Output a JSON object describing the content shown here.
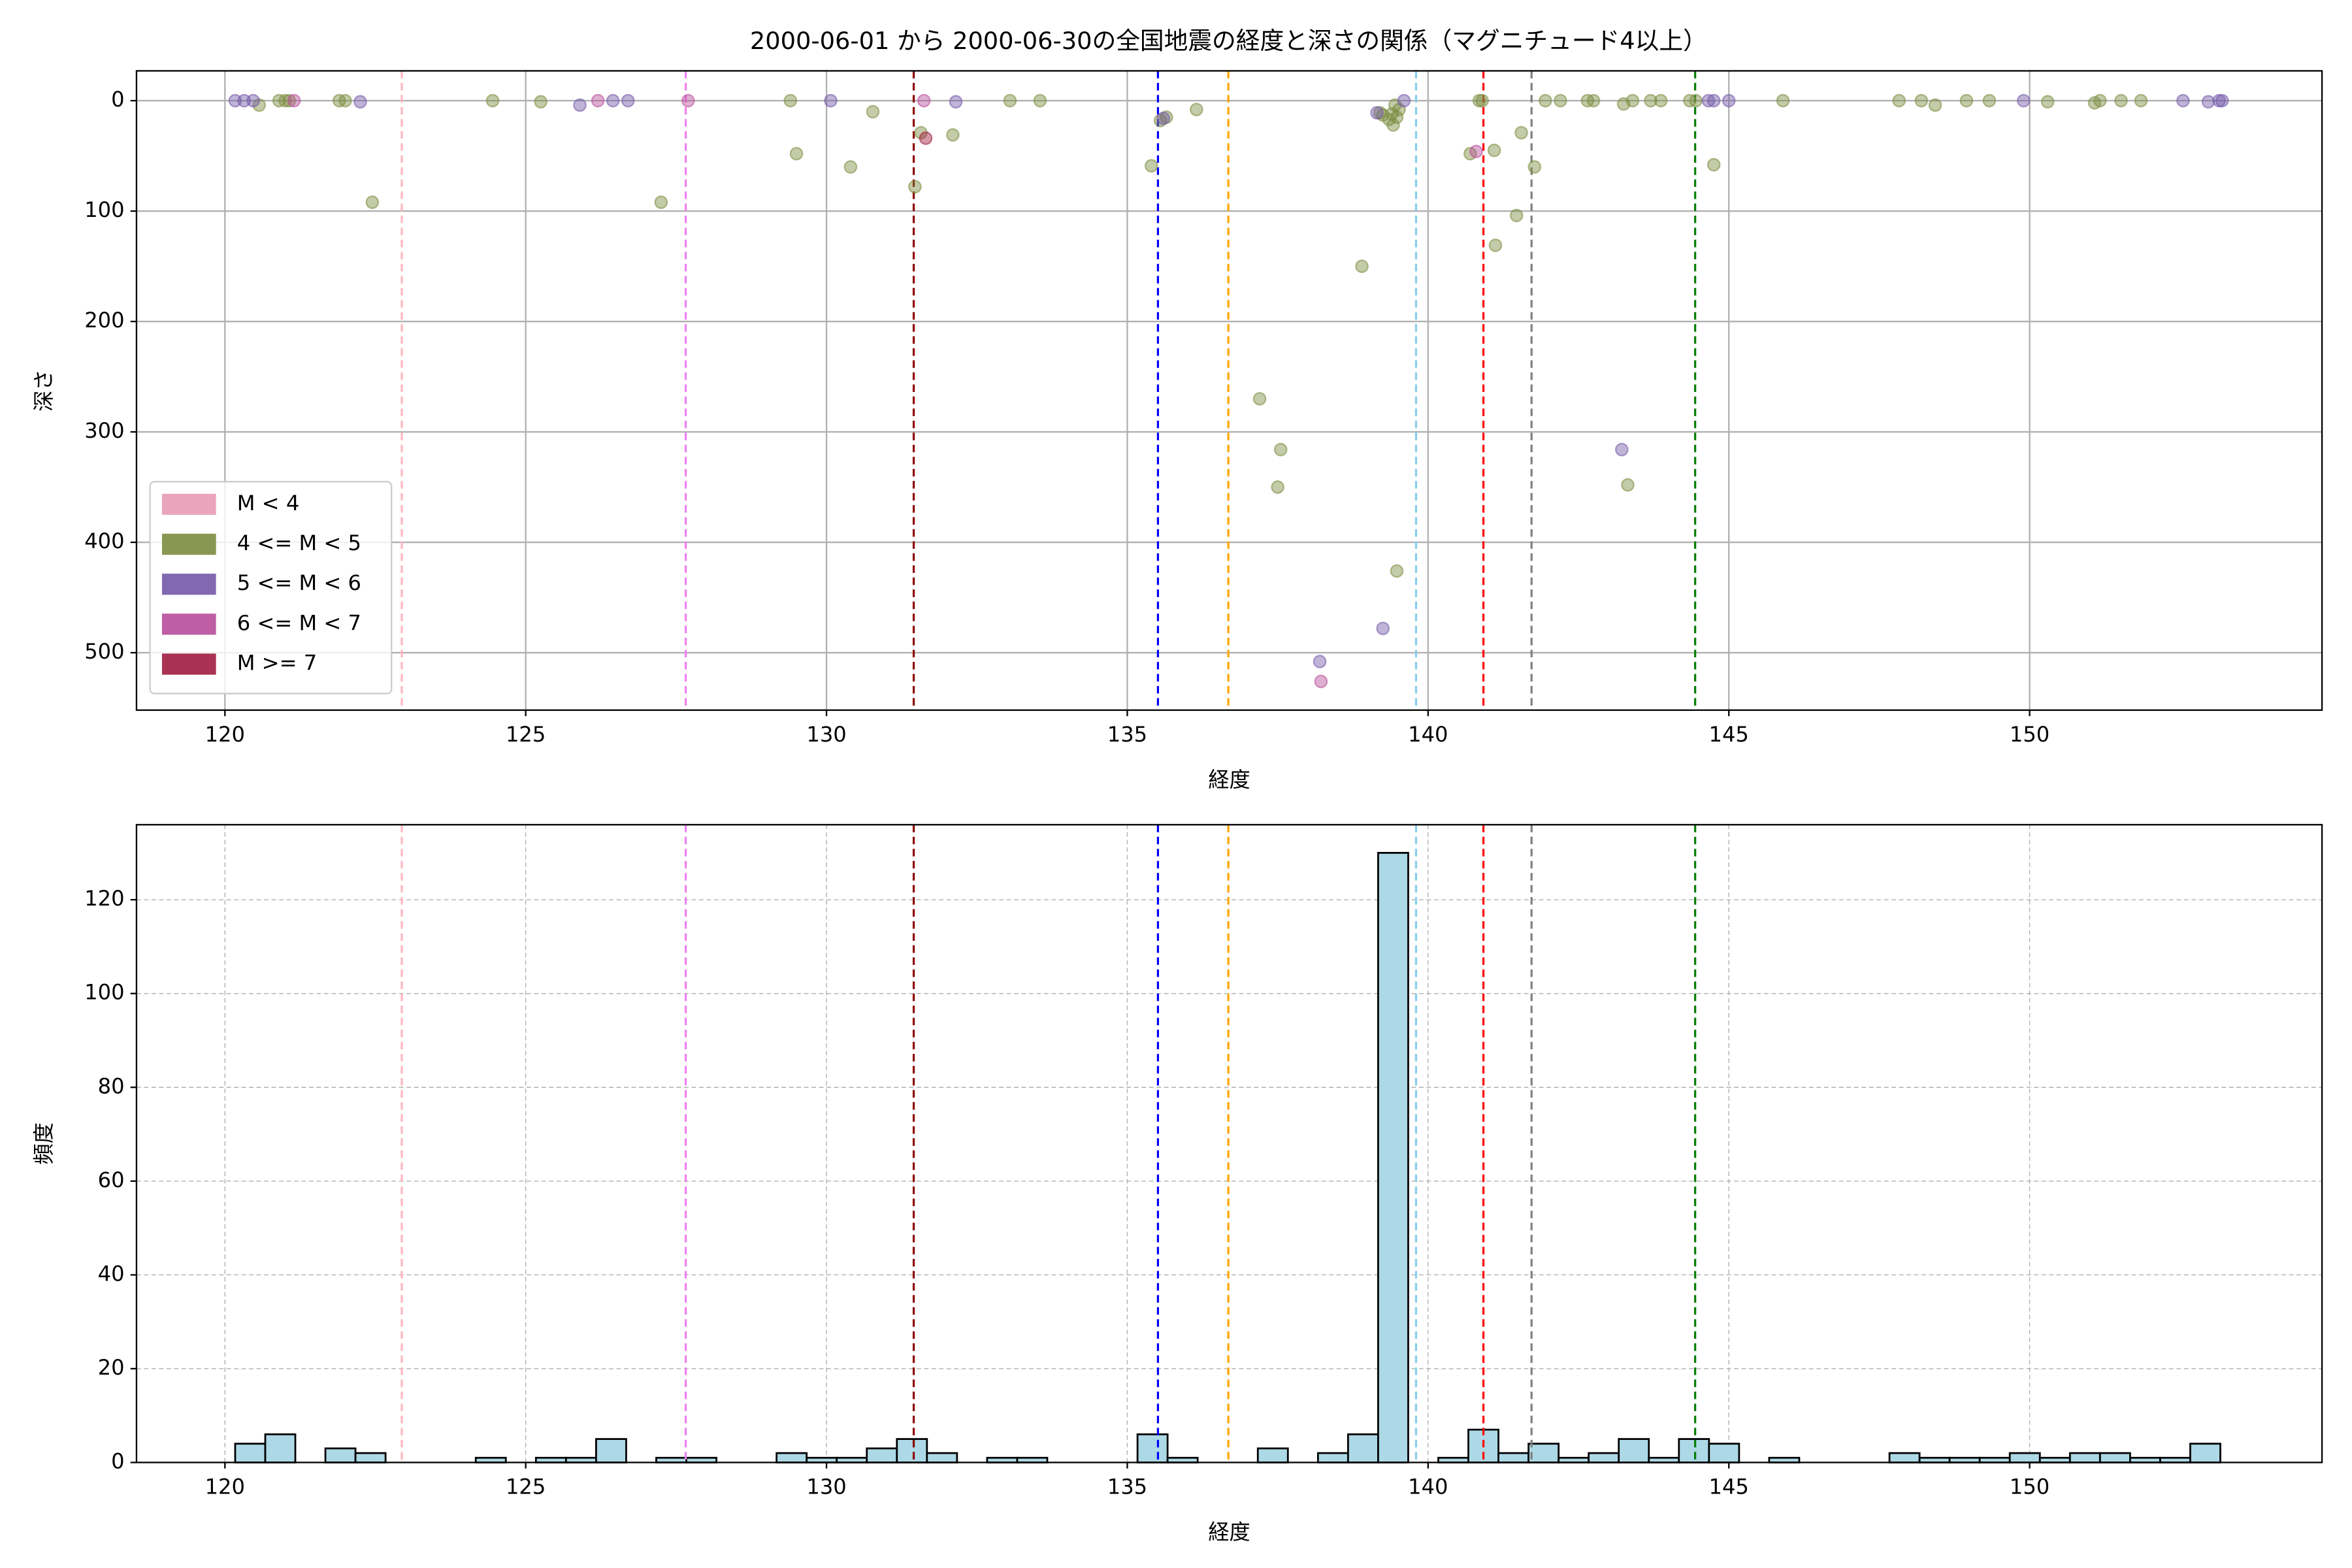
{
  "chart_data": [
    {
      "type": "scatter",
      "title": "2000-06-01 から 2000-06-30の全国地震の経度と深さの関係（マグニチュード4以上）",
      "x_label": "経度",
      "y_label": "深さ",
      "xlim": [
        118.53,
        154.86
      ],
      "xticks": [
        120,
        125,
        130,
        135,
        140,
        145,
        150
      ],
      "ylim": [
        552,
        -27
      ],
      "yticks": [
        0,
        100,
        200,
        300,
        400,
        500
      ],
      "grid": true,
      "legend": "lower left",
      "vlines": [
        {
          "x": 122.94,
          "color": "#ffb6c1"
        },
        {
          "x": 127.66,
          "color": "#ee82ee"
        },
        {
          "x": 131.45,
          "color": "#8b0000"
        },
        {
          "x": 135.51,
          "color": "#0000ff"
        },
        {
          "x": 136.68,
          "color": "#ffa500"
        },
        {
          "x": 139.8,
          "color": "#87ceeb"
        },
        {
          "x": 140.92,
          "color": "#ff0000"
        },
        {
          "x": 141.72,
          "color": "#808080"
        },
        {
          "x": 144.44,
          "color": "#008000"
        }
      ],
      "series": [
        {
          "name": "M < 4",
          "color": "#e89ab5",
          "x": [],
          "values": []
        },
        {
          "name": "4 <= M < 5",
          "color": "#7b8c3f",
          "x": [
            120.57,
            120.9,
            121.0,
            121.07,
            121.9,
            122.0,
            122.45,
            124.45,
            125.25,
            127.25,
            129.4,
            129.5,
            130.4,
            130.77,
            131.47,
            131.57,
            132.1,
            133.05,
            133.55,
            135.4,
            135.55,
            135.65,
            136.15,
            137.2,
            137.55,
            137.5,
            138.9,
            139.2,
            139.25,
            139.35,
            139.42,
            139.48,
            139.52,
            139.4,
            139.45,
            139.48,
            140.85,
            140.9,
            140.7,
            141.1,
            141.12,
            141.47,
            141.55,
            141.77,
            141.95,
            142.2,
            142.65,
            142.75,
            143.25,
            143.32,
            143.4,
            143.7,
            143.87,
            144.35,
            144.45,
            144.75,
            145.9,
            147.83,
            148.2,
            148.43,
            148.95,
            149.33,
            150.3,
            151.08,
            151.17,
            151.52,
            151.85
          ],
          "values": [
            4,
            0,
            0,
            0,
            0,
            0,
            92,
            0,
            1,
            92,
            0,
            48,
            60,
            10,
            78,
            29,
            31,
            0,
            0,
            59,
            18,
            15,
            8,
            270,
            316,
            350,
            150,
            11,
            13,
            17,
            22,
            15,
            8,
            12,
            4,
            426,
            0,
            0,
            48,
            45,
            131,
            104,
            29,
            60,
            0,
            0,
            0,
            0,
            3,
            348,
            0,
            0,
            0,
            0,
            0,
            58,
            0,
            0,
            0,
            4,
            0,
            0,
            1,
            2,
            0,
            0,
            0
          ]
        },
        {
          "name": "5 <= M < 6",
          "color": "#7358a8",
          "x": [
            120.17,
            120.32,
            120.47,
            122.25,
            125.9,
            126.45,
            126.7,
            130.07,
            132.15,
            135.6,
            139.6,
            139.15,
            143.22,
            138.2,
            139.25,
            144.66,
            144.75,
            145.0,
            149.9,
            152.55,
            152.97,
            153.15,
            153.2
          ],
          "values": [
            0,
            0,
            0,
            1,
            4,
            0,
            0,
            0,
            1,
            16,
            0,
            11,
            316,
            508,
            478,
            0,
            0,
            0,
            0,
            0,
            1,
            0,
            0
          ]
        },
        {
          "name": "6 <= M < 7",
          "color": "#b84d9a",
          "x": [
            121.15,
            126.2,
            127.7,
            131.62,
            140.8,
            138.22
          ],
          "values": [
            0,
            0,
            0,
            0,
            46,
            526
          ]
        },
        {
          "name": "M >= 7",
          "color": "#a01c40",
          "x": [
            131.65
          ],
          "values": [
            34
          ]
        }
      ]
    },
    {
      "type": "histogram",
      "x_label": "経度",
      "y_label": "頻度",
      "xlim": [
        118.53,
        154.86
      ],
      "xticks": [
        120,
        125,
        130,
        135,
        140,
        145,
        150
      ],
      "ylim": [
        0,
        136
      ],
      "yticks": [
        0,
        20,
        40,
        60,
        80,
        100,
        120
      ],
      "grid": true,
      "color": "#add8e6",
      "vlines": [
        {
          "x": 122.94,
          "color": "#ffb6c1"
        },
        {
          "x": 127.66,
          "color": "#ee82ee"
        },
        {
          "x": 131.45,
          "color": "#8b0000"
        },
        {
          "x": 135.51,
          "color": "#0000ff"
        },
        {
          "x": 136.68,
          "color": "#ffa500"
        },
        {
          "x": 139.8,
          "color": "#87ceeb"
        },
        {
          "x": 140.92,
          "color": "#ff0000"
        },
        {
          "x": 141.72,
          "color": "#808080"
        },
        {
          "x": 144.44,
          "color": "#008000"
        }
      ],
      "bins": [
        120.17,
        120.67,
        121.17,
        121.67,
        122.17,
        122.67,
        123.17,
        123.67,
        124.17,
        124.67,
        125.17,
        125.67,
        126.17,
        126.67,
        127.17,
        127.67,
        128.17,
        128.67,
        129.17,
        129.67,
        130.17,
        130.67,
        131.17,
        131.67,
        132.17,
        132.67,
        133.17,
        133.67,
        134.17,
        134.67,
        135.17,
        135.67,
        136.17,
        136.67,
        137.17,
        137.67,
        138.17,
        138.67,
        139.17,
        139.67,
        140.17,
        140.67,
        141.17,
        141.67,
        142.17,
        142.67,
        143.17,
        143.67,
        144.17,
        144.67,
        145.17,
        145.67,
        146.17,
        146.67,
        147.17,
        147.67,
        148.17,
        148.67,
        149.17,
        149.67,
        150.17,
        150.67,
        151.17,
        151.67,
        152.17,
        152.67,
        153.17
      ],
      "values": [
        4,
        6,
        0,
        3,
        2,
        0,
        0,
        0,
        1,
        0,
        1,
        1,
        5,
        0,
        1,
        1,
        0,
        0,
        2,
        1,
        1,
        3,
        5,
        2,
        0,
        1,
        1,
        0,
        0,
        0,
        6,
        1,
        0,
        0,
        3,
        0,
        2,
        6,
        130,
        0,
        1,
        7,
        2,
        4,
        1,
        2,
        5,
        1,
        5,
        4,
        0,
        1,
        0,
        0,
        0,
        2,
        1,
        1,
        1,
        2,
        1,
        2,
        2,
        1,
        1,
        4
      ]
    }
  ]
}
